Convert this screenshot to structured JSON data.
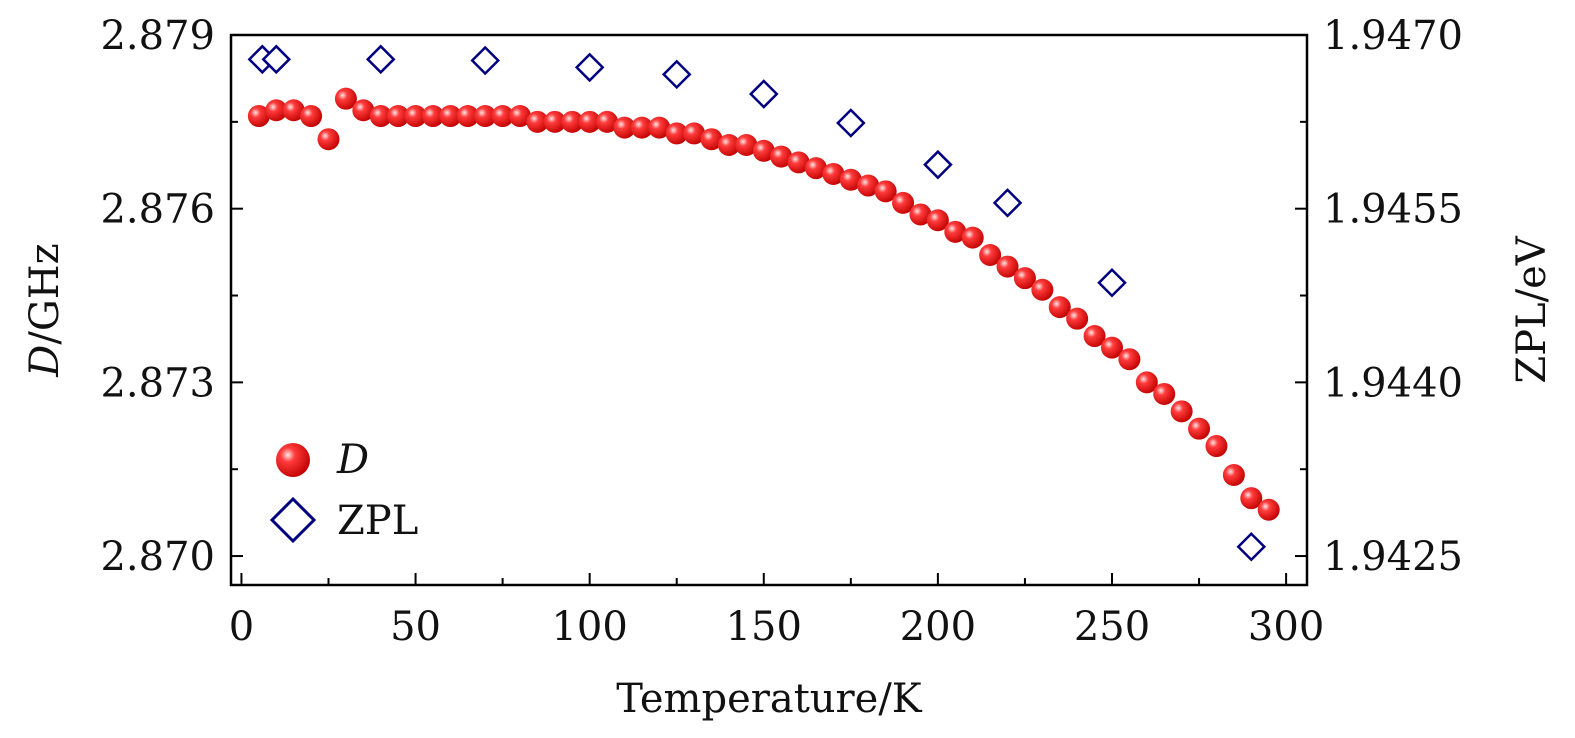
{
  "chart_data": {
    "type": "scatter",
    "title": "",
    "xlabel": "Temperature/K",
    "ylabel_left": {
      "italic": "D",
      "rest": "/GHz"
    },
    "ylabel_right": "ZPL/eV",
    "xlim": [
      -3,
      306
    ],
    "ylim_left": [
      2.8695,
      2.879
    ],
    "ylim_right": [
      1.94225,
      1.947
    ],
    "x_ticks": [
      0,
      50,
      100,
      150,
      200,
      250,
      300
    ],
    "x_tick_labels": [
      "0",
      "50",
      "100",
      "150",
      "200",
      "250",
      "300"
    ],
    "y_left_ticks": [
      2.879,
      2.876,
      2.873,
      2.87
    ],
    "y_left_tick_labels": [
      "2.879",
      "2.876",
      "2.873",
      "2.870"
    ],
    "y_right_ticks": [
      1.947,
      1.9455,
      1.944,
      1.9425
    ],
    "y_right_tick_labels": [
      "1.9470",
      "1.9455",
      "1.9440",
      "1.9425"
    ],
    "legend": {
      "position": "bottom-left",
      "entries": [
        {
          "label": "D",
          "italic": true,
          "series": "D"
        },
        {
          "label": "ZPL",
          "italic": false,
          "series": "ZPL"
        }
      ]
    },
    "series": [
      {
        "name": "D",
        "axis": "left",
        "marker": "sphere",
        "color": "#e8000d",
        "x": [
          5,
          10,
          15,
          20,
          25,
          30,
          35,
          40,
          45,
          50,
          55,
          60,
          65,
          70,
          75,
          80,
          85,
          90,
          95,
          100,
          105,
          110,
          115,
          120,
          125,
          130,
          135,
          140,
          145,
          150,
          155,
          160,
          165,
          170,
          175,
          180,
          185,
          190,
          195,
          200,
          205,
          210,
          215,
          220,
          225,
          230,
          235,
          240,
          245,
          250,
          255,
          260,
          265,
          270,
          275,
          280,
          285,
          290,
          295
        ],
        "y": [
          2.8776,
          2.8777,
          2.8777,
          2.8776,
          2.8772,
          2.8779,
          2.8777,
          2.8776,
          2.8776,
          2.8776,
          2.8776,
          2.8776,
          2.8776,
          2.8776,
          2.8776,
          2.8776,
          2.8775,
          2.8775,
          2.8775,
          2.8775,
          2.8775,
          2.8774,
          2.8774,
          2.8774,
          2.8773,
          2.8773,
          2.8772,
          2.8771,
          2.8771,
          2.877,
          2.8769,
          2.8768,
          2.8767,
          2.8766,
          2.8765,
          2.8764,
          2.8763,
          2.8761,
          2.8759,
          2.8758,
          2.8756,
          2.8755,
          2.8752,
          2.875,
          2.8748,
          2.8746,
          2.8743,
          2.8741,
          2.8738,
          2.8736,
          2.8734,
          2.873,
          2.8728,
          2.8725,
          2.8722,
          2.8719,
          2.8714,
          2.871,
          2.8708
        ]
      },
      {
        "name": "ZPL",
        "axis": "right",
        "marker": "diamond",
        "color": "#000080",
        "x": [
          6,
          10,
          40,
          70,
          100,
          125,
          150,
          175,
          200,
          220,
          250,
          290
        ],
        "y": [
          1.94679,
          1.94679,
          1.94679,
          1.94678,
          1.94672,
          1.94666,
          1.94649,
          1.94624,
          1.94588,
          1.94555,
          1.94486,
          1.94258
        ]
      }
    ]
  }
}
